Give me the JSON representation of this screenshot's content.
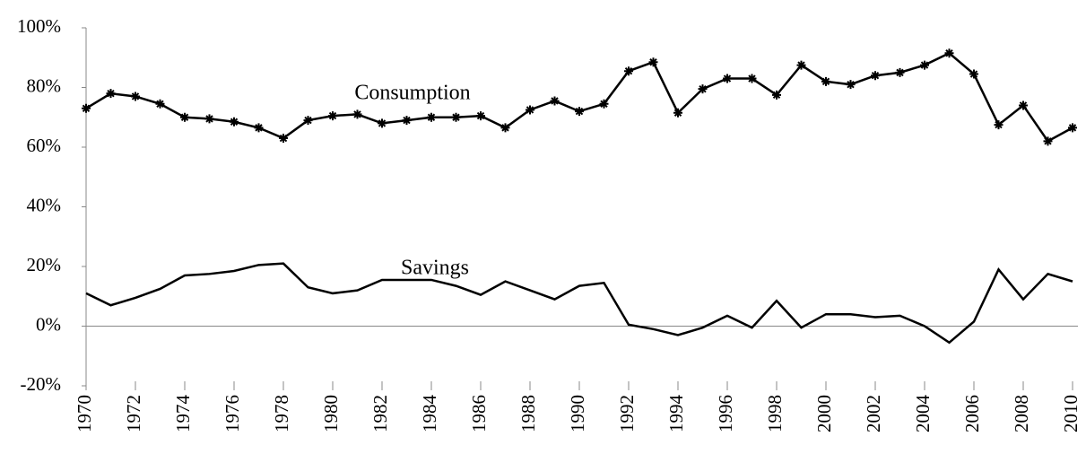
{
  "chart_data": {
    "type": "line",
    "x": [
      1970,
      1971,
      1972,
      1973,
      1974,
      1975,
      1976,
      1977,
      1978,
      1979,
      1980,
      1981,
      1982,
      1983,
      1984,
      1985,
      1986,
      1987,
      1988,
      1989,
      1990,
      1991,
      1992,
      1993,
      1994,
      1995,
      1996,
      1997,
      1998,
      1999,
      2000,
      2001,
      2002,
      2003,
      2004,
      2005,
      2006,
      2007,
      2008,
      2009,
      2010
    ],
    "series": [
      {
        "name": "Consumption",
        "color": "#000000",
        "marker": "star",
        "values": [
          73,
          78,
          77,
          74.5,
          70,
          69.5,
          68.5,
          66.5,
          63,
          69,
          70.5,
          71,
          68,
          69,
          70,
          70,
          70.5,
          66.5,
          72.5,
          75.5,
          72,
          74.5,
          85.5,
          88.5,
          71.5,
          79.5,
          83,
          83,
          77.5,
          87.5,
          82,
          81,
          84,
          85,
          87.5,
          91.5,
          84.5,
          67.5,
          74,
          62,
          66.5
        ]
      },
      {
        "name": "Savings",
        "color": "#000000",
        "values": [
          11,
          7,
          9.5,
          12.5,
          17,
          17.5,
          18.5,
          20.5,
          21,
          13,
          11,
          12,
          15.5,
          15.5,
          15.5,
          13.5,
          10.5,
          15,
          12,
          9,
          13.5,
          14.5,
          0.5,
          -1,
          -3,
          -0.5,
          3.5,
          -0.5,
          8.5,
          -0.5,
          4,
          4,
          3,
          3.5,
          0,
          -5.5,
          1.5,
          19,
          9,
          17.5,
          15
        ]
      }
    ],
    "xlim": [
      1970,
      2010
    ],
    "xticks": [
      1970,
      1972,
      1974,
      1976,
      1978,
      1980,
      1982,
      1984,
      1986,
      1988,
      1990,
      1992,
      1994,
      1996,
      1998,
      2000,
      2002,
      2004,
      2006,
      2008,
      2010
    ],
    "ylim": [
      -20,
      100
    ],
    "yticks": [
      {
        "value": -20,
        "label": "-20%"
      },
      {
        "value": 0,
        "label": "0%"
      },
      {
        "value": 20,
        "label": "20%"
      },
      {
        "value": 40,
        "label": "40%"
      },
      {
        "value": 60,
        "label": "60%"
      },
      {
        "value": 80,
        "label": "80%"
      },
      {
        "value": 100,
        "label": "100%"
      }
    ]
  }
}
